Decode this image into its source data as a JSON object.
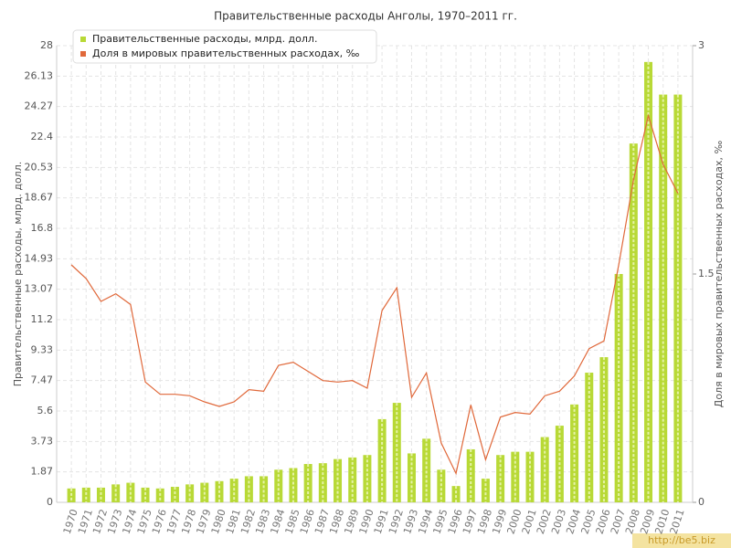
{
  "chart_data": {
    "type": "bar-line",
    "title": "Правительственные расходы Анголы, 1970–2011 гг.",
    "ylabel": "Правительственные расходы, млрд. долл.",
    "y2label": "Доля в мировых правительственных расходах, ‰",
    "categories": [
      "1970",
      "1971",
      "1972",
      "1973",
      "1974",
      "1975",
      "1976",
      "1977",
      "1978",
      "1979",
      "1980",
      "1981",
      "1982",
      "1983",
      "1984",
      "1985",
      "1986",
      "1987",
      "1988",
      "1989",
      "1990",
      "1991",
      "1992",
      "1993",
      "1994",
      "1995",
      "1996",
      "1997",
      "1998",
      "1999",
      "2000",
      "2001",
      "2002",
      "2003",
      "2004",
      "2005",
      "2006",
      "2007",
      "2008",
      "2009",
      "2010",
      "2011"
    ],
    "series": [
      {
        "name": "Правительственные расходы, млрд. долл.",
        "color": "#b8d936",
        "type": "bar",
        "values": [
          0.85,
          0.9,
          0.9,
          1.1,
          1.2,
          0.9,
          0.85,
          0.95,
          1.1,
          1.2,
          1.3,
          1.45,
          1.6,
          1.6,
          2.0,
          2.1,
          2.35,
          2.4,
          2.65,
          2.75,
          2.9,
          5.1,
          6.1,
          3.0,
          3.9,
          2.0,
          1.0,
          3.25,
          1.45,
          2.9,
          3.1,
          3.1,
          4.0,
          4.7,
          6.0,
          7.95,
          8.9,
          14.0,
          22.0,
          27.0,
          25.0,
          25.0
        ]
      },
      {
        "name": "Доля в мировых правительственных расходах, ‰",
        "color": "#e0683a",
        "type": "line",
        "axis": "y2",
        "values": [
          1.56,
          1.47,
          1.32,
          1.37,
          1.3,
          0.79,
          0.71,
          0.71,
          0.7,
          0.66,
          0.63,
          0.66,
          0.74,
          0.73,
          0.9,
          0.92,
          0.86,
          0.8,
          0.79,
          0.8,
          0.75,
          1.26,
          1.41,
          0.69,
          0.85,
          0.39,
          0.19,
          0.64,
          0.28,
          0.56,
          0.59,
          0.58,
          0.7,
          0.73,
          0.83,
          1.01,
          1.06,
          1.56,
          2.12,
          2.54,
          2.22,
          2.03
        ]
      }
    ],
    "ylim": [
      0,
      28
    ],
    "yticks": [
      0,
      1.87,
      3.73,
      5.6,
      7.47,
      9.33,
      11.2,
      13.07,
      14.93,
      16.8,
      18.67,
      20.53,
      22.4,
      24.27,
      26.13,
      28
    ],
    "y2lim": [
      0,
      3
    ],
    "y2ticks": [
      0,
      1.5,
      3
    ],
    "grid": true,
    "legend": "upper left"
  },
  "watermark": "http://be5.biz"
}
